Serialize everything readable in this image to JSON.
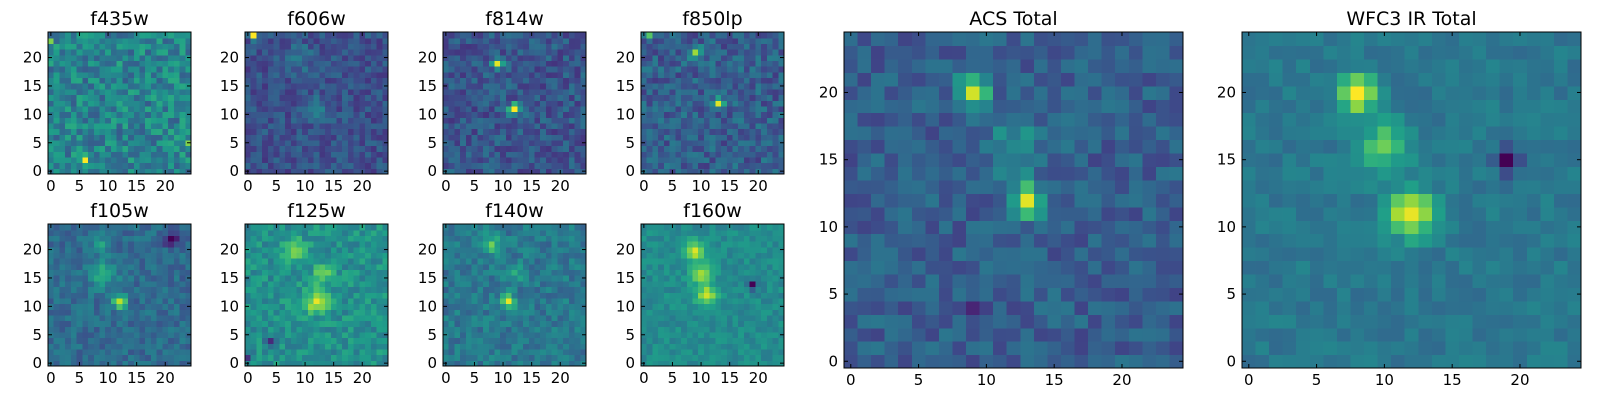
{
  "figure": {
    "background": "#ffffff",
    "colormap": "viridis",
    "colormap_stops": [
      "#440154",
      "#482878",
      "#3e4989",
      "#31688e",
      "#26828e",
      "#1f9e89",
      "#35b779",
      "#6ece58",
      "#b5de2b",
      "#fde725"
    ]
  },
  "chart_data": [
    {
      "type": "heatmap",
      "title": "f435w",
      "grid_size": 25,
      "xticks": [
        0,
        5,
        10,
        15,
        20
      ],
      "yticks": [
        0,
        5,
        10,
        15,
        20
      ],
      "xlim": [
        -0.5,
        24.5
      ],
      "ylim": [
        -0.5,
        24.5
      ],
      "background_level": 0.45,
      "noise": 0.16,
      "features": [
        {
          "x": 6,
          "y": 2,
          "value": 0.95,
          "sigma": 0.45
        },
        {
          "x": 24,
          "y": 5,
          "value": 0.3,
          "sigma": 0.45
        },
        {
          "x": 0,
          "y": 23,
          "value": 0.2,
          "sigma": 0.45
        }
      ]
    },
    {
      "type": "heatmap",
      "title": "f606w",
      "grid_size": 25,
      "xticks": [
        0,
        5,
        10,
        15,
        20
      ],
      "yticks": [
        0,
        5,
        10,
        15,
        20
      ],
      "xlim": [
        -0.5,
        24.5
      ],
      "ylim": [
        -0.5,
        24.5
      ],
      "background_level": 0.25,
      "noise": 0.1,
      "features": [
        {
          "x": 1,
          "y": 24,
          "value": 0.95,
          "sigma": 0.45
        },
        {
          "x": 9,
          "y": 20,
          "value": 0.18,
          "sigma": 1.5
        },
        {
          "x": 12,
          "y": 11,
          "value": 0.2,
          "sigma": 1.5
        }
      ]
    },
    {
      "type": "heatmap",
      "title": "f814w",
      "grid_size": 25,
      "xticks": [
        0,
        5,
        10,
        15,
        20
      ],
      "yticks": [
        0,
        5,
        10,
        15,
        20
      ],
      "xlim": [
        -0.5,
        24.5
      ],
      "ylim": [
        -0.5,
        24.5
      ],
      "background_level": 0.27,
      "noise": 0.12,
      "features": [
        {
          "x": 9,
          "y": 19,
          "value": 0.7,
          "sigma": 0.6
        },
        {
          "x": 12,
          "y": 11,
          "value": 0.72,
          "sigma": 0.7
        }
      ]
    },
    {
      "type": "heatmap",
      "title": "f850lp",
      "grid_size": 25,
      "xticks": [
        0,
        5,
        10,
        15,
        20
      ],
      "yticks": [
        0,
        5,
        10,
        15,
        20
      ],
      "xlim": [
        -0.5,
        24.5
      ],
      "ylim": [
        -0.5,
        24.5
      ],
      "background_level": 0.3,
      "noise": 0.13,
      "features": [
        {
          "x": 9,
          "y": 21,
          "value": 0.5,
          "sigma": 0.7
        },
        {
          "x": 13,
          "y": 12,
          "value": 0.7,
          "sigma": 0.6
        },
        {
          "x": 1,
          "y": 24,
          "value": 0.4,
          "sigma": 0.45
        }
      ]
    },
    {
      "type": "heatmap",
      "title": "f105w",
      "grid_size": 25,
      "xticks": [
        0,
        5,
        10,
        15,
        20
      ],
      "yticks": [
        0,
        5,
        10,
        15,
        20
      ],
      "xlim": [
        -0.5,
        24.5
      ],
      "ylim": [
        -0.5,
        24.5
      ],
      "background_level": 0.35,
      "noise": 0.09,
      "features": [
        {
          "x": 12,
          "y": 11,
          "value": 0.6,
          "sigma": 0.8
        },
        {
          "x": 9,
          "y": 16,
          "value": 0.25,
          "sigma": 1.8
        },
        {
          "x": 9,
          "y": 21,
          "value": 0.25,
          "sigma": 0.9
        },
        {
          "x": 21,
          "y": 22,
          "value": -0.3,
          "sigma": 1.0
        }
      ]
    },
    {
      "type": "heatmap",
      "title": "f125w",
      "grid_size": 25,
      "xticks": [
        0,
        5,
        10,
        15,
        20
      ],
      "yticks": [
        0,
        5,
        10,
        15,
        20
      ],
      "xlim": [
        -0.5,
        24.5
      ],
      "ylim": [
        -0.5,
        24.5
      ],
      "background_level": 0.5,
      "noise": 0.11,
      "features": [
        {
          "x": 8,
          "y": 20,
          "value": 0.35,
          "sigma": 1.3
        },
        {
          "x": 12,
          "y": 11,
          "value": 0.4,
          "sigma": 1.5
        },
        {
          "x": 13,
          "y": 16,
          "value": 0.25,
          "sigma": 1.2
        },
        {
          "x": 4,
          "y": 4,
          "value": -0.45,
          "sigma": 0.6
        },
        {
          "x": 0,
          "y": 1,
          "value": -0.4,
          "sigma": 0.5
        }
      ]
    },
    {
      "type": "heatmap",
      "title": "f140w",
      "grid_size": 25,
      "xticks": [
        0,
        5,
        10,
        15,
        20
      ],
      "yticks": [
        0,
        5,
        10,
        15,
        20
      ],
      "xlim": [
        -0.5,
        24.5
      ],
      "ylim": [
        -0.5,
        24.5
      ],
      "background_level": 0.4,
      "noise": 0.1,
      "features": [
        {
          "x": 11,
          "y": 11,
          "value": 0.55,
          "sigma": 0.8
        },
        {
          "x": 8,
          "y": 21,
          "value": 0.3,
          "sigma": 1.2
        },
        {
          "x": 12,
          "y": 16,
          "value": 0.2,
          "sigma": 1.2
        }
      ]
    },
    {
      "type": "heatmap",
      "title": "f160w",
      "grid_size": 25,
      "xticks": [
        0,
        5,
        10,
        15,
        20
      ],
      "yticks": [
        0,
        5,
        10,
        15,
        20
      ],
      "xlim": [
        -0.5,
        24.5
      ],
      "ylim": [
        -0.5,
        24.5
      ],
      "background_level": 0.48,
      "noise": 0.07,
      "features": [
        {
          "x": 9,
          "y": 20,
          "value": 0.45,
          "sigma": 1.2
        },
        {
          "x": 11,
          "y": 12,
          "value": 0.45,
          "sigma": 1.3
        },
        {
          "x": 10,
          "y": 16,
          "value": 0.35,
          "sigma": 1.3
        },
        {
          "x": 19,
          "y": 14,
          "value": -0.45,
          "sigma": 0.6
        }
      ]
    },
    {
      "type": "heatmap",
      "title": "ACS Total",
      "grid_size": 25,
      "xticks": [
        0,
        5,
        10,
        15,
        20
      ],
      "yticks": [
        0,
        5,
        10,
        15,
        20
      ],
      "xlim": [
        -0.5,
        24.5
      ],
      "ylim": [
        -0.5,
        24.5
      ],
      "background_level": 0.3,
      "noise": 0.1,
      "features": [
        {
          "x": 9,
          "y": 20,
          "value": 0.6,
          "sigma": 0.8
        },
        {
          "x": 13,
          "y": 12,
          "value": 0.7,
          "sigma": 0.8
        },
        {
          "x": 12,
          "y": 16,
          "value": 0.2,
          "sigma": 1.5
        },
        {
          "x": 9,
          "y": 4,
          "value": -0.2,
          "sigma": 0.5
        }
      ]
    },
    {
      "type": "heatmap",
      "title": "WFC3 IR Total",
      "grid_size": 25,
      "xticks": [
        0,
        5,
        10,
        15,
        20
      ],
      "yticks": [
        0,
        5,
        10,
        15,
        20
      ],
      "xlim": [
        -0.5,
        24.5
      ],
      "ylim": [
        -0.5,
        24.5
      ],
      "background_level": 0.4,
      "noise": 0.06,
      "features": [
        {
          "x": 8,
          "y": 20,
          "value": 0.6,
          "sigma": 1.0
        },
        {
          "x": 12,
          "y": 11,
          "value": 0.6,
          "sigma": 1.2
        },
        {
          "x": 10,
          "y": 16,
          "value": 0.35,
          "sigma": 1.3
        },
        {
          "x": 19,
          "y": 15,
          "value": -0.55,
          "sigma": 0.6
        }
      ]
    }
  ]
}
